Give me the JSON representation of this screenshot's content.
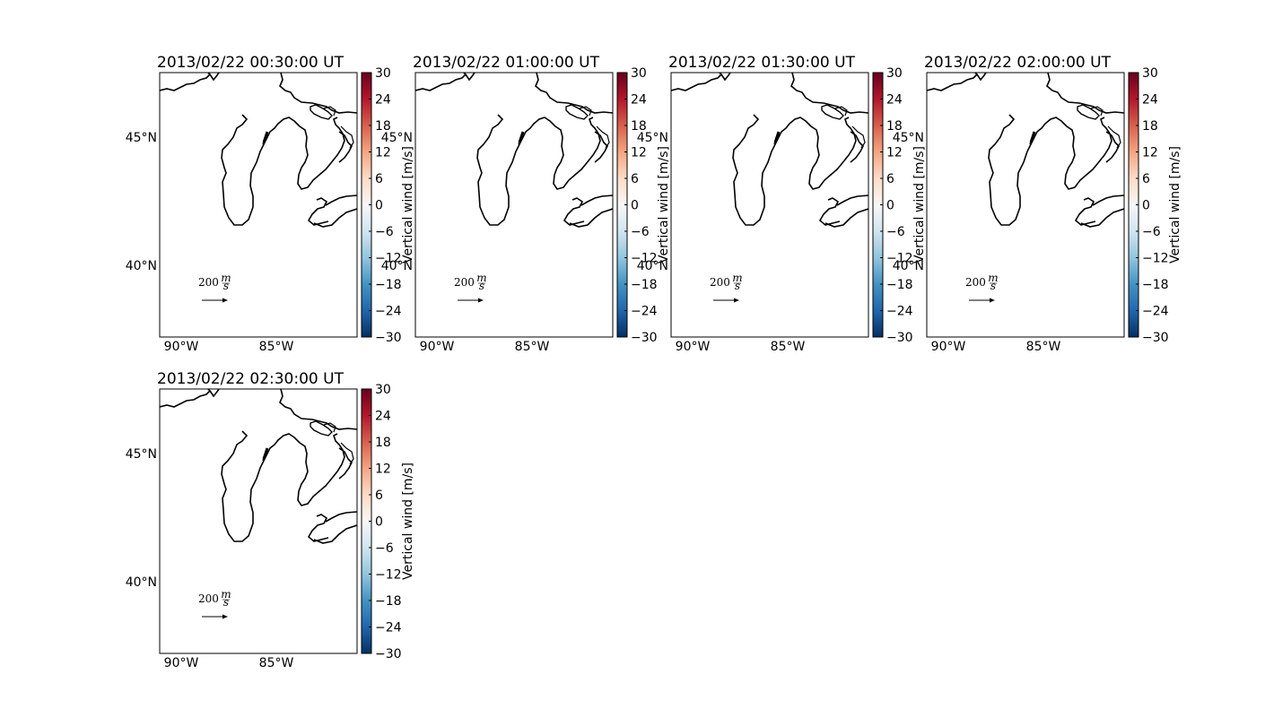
{
  "figure": {
    "colorbar": {
      "label": "Vertical wind [m/s]",
      "ticks": [
        "30",
        "24",
        "18",
        "12",
        "6",
        "0",
        "−6",
        "−12",
        "−18",
        "−24",
        "−30"
      ],
      "range": [
        -30,
        30
      ],
      "colors": [
        "#67001f",
        "#b2182b",
        "#d6604d",
        "#f4a582",
        "#fddbc7",
        "#f7f7f7",
        "#d1e5f0",
        "#92c5de",
        "#4393c3",
        "#2166ac",
        "#053061"
      ]
    },
    "axes_labels": {
      "lat": [
        "45°N",
        "40°N"
      ],
      "lon": [
        "90°W",
        "85°W"
      ]
    },
    "quiver_key": {
      "value": "200",
      "unit_num": "m",
      "unit_den": "s",
      "magnitude": 200
    }
  },
  "chart_data": [
    {
      "type": "quiver-map",
      "title": "2013/02/22 00:30:00 UT",
      "region": "Great Lakes",
      "lon_ticks": [
        -90,
        -85
      ],
      "lat_ticks": [
        45,
        40
      ],
      "colorbar_label": "Vertical wind [m/s]",
      "clim": [
        -30,
        30
      ]
    },
    {
      "type": "quiver-map",
      "title": "2013/02/22 01:00:00 UT",
      "region": "Great Lakes",
      "lon_ticks": [
        -90,
        -85
      ],
      "lat_ticks": [
        45,
        40
      ],
      "colorbar_label": "Vertical wind [m/s]",
      "clim": [
        -30,
        30
      ]
    },
    {
      "type": "quiver-map",
      "title": "2013/02/22 01:30:00 UT",
      "region": "Great Lakes",
      "lon_ticks": [
        -90,
        -85
      ],
      "lat_ticks": [
        45,
        40
      ],
      "colorbar_label": "Vertical wind [m/s]",
      "clim": [
        -30,
        30
      ]
    },
    {
      "type": "quiver-map",
      "title": "2013/02/22 02:00:00 UT",
      "region": "Great Lakes",
      "lon_ticks": [
        -90,
        -85
      ],
      "lat_ticks": [
        45,
        40
      ],
      "colorbar_label": "Vertical wind [m/s]",
      "clim": [
        -30,
        30
      ]
    },
    {
      "type": "quiver-map",
      "title": "2013/02/22 02:30:00 UT",
      "region": "Great Lakes",
      "lon_ticks": [
        -90,
        -85
      ],
      "lat_ticks": [
        45,
        40
      ],
      "colorbar_label": "Vertical wind [m/s]",
      "clim": [
        -30,
        30
      ]
    }
  ]
}
